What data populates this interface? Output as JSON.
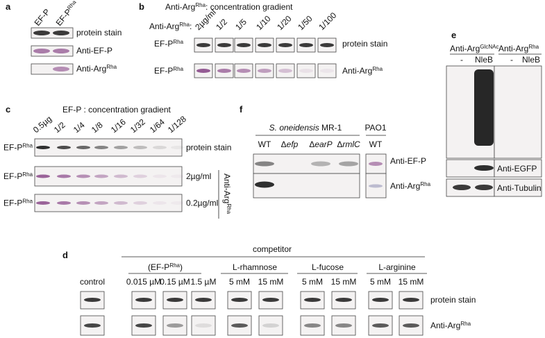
{
  "panel_a": {
    "letter": "a",
    "lanes": [
      "EF-P",
      {
        "base": "EF-P",
        "sup": "Rha"
      }
    ],
    "rows": [
      "protein stain",
      "Anti-EF-P",
      {
        "base": "Anti-Arg",
        "sup": "Rha"
      }
    ]
  },
  "panel_b": {
    "letter": "b",
    "title": {
      "base": "Anti-Arg",
      "sup": "Rha",
      "tail": ": concentration gradient"
    },
    "lane_prefix": {
      "base": "Anti-Arg",
      "sup": "Rha",
      "tail": ":"
    },
    "lanes": [
      "2µg/ml",
      "1/2",
      "1/5",
      "1/10",
      "1/20",
      "1/50",
      "1/100"
    ],
    "left_labels": [
      {
        "base": "EF-P",
        "sup": "Rha"
      },
      {
        "base": "EF-P",
        "sup": "Rha"
      }
    ],
    "rows": [
      "protein stain",
      {
        "base": "Anti-Arg",
        "sup": "Rha"
      }
    ]
  },
  "panel_c": {
    "letter": "c",
    "title": "EF-P : concentration gradient",
    "lanes": [
      "0.5µg",
      "1/2",
      "1/4",
      "1/8",
      "1/16",
      "1/32",
      "1/64",
      "1/128"
    ],
    "left_labels": [
      {
        "base": "EF-P",
        "sup": "Rha"
      },
      {
        "base": "EF-P",
        "sup": "Rha"
      },
      {
        "base": "EF-P",
        "sup": "Rha"
      }
    ],
    "rows": [
      "protein stain",
      "2µg/ml",
      "0.2µg/ml"
    ],
    "side_label": {
      "base": "Anti-Arg",
      "sup": "Rha"
    }
  },
  "panel_d": {
    "letter": "d",
    "title": "competitor",
    "groups": [
      {
        "base": "(EF-P",
        "sup": "Rha",
        "tail": ")"
      },
      "L-rhamnose",
      "L-fucose",
      "L-arginine"
    ],
    "lanes": [
      "control",
      "0.015 µM",
      "0.15 µM",
      "1.5 µM",
      "5 mM",
      "15 mM",
      "5 mM",
      "15 mM",
      "5 mM",
      "15 mM"
    ],
    "rows": [
      "protein stain",
      {
        "base": "Anti-Arg",
        "sup": "Rha"
      }
    ]
  },
  "panel_e": {
    "letter": "e",
    "headers": [
      {
        "base": "Anti-Arg",
        "sup": "GlcNAc"
      },
      {
        "base": "Anti-Arg",
        "sup": "Rha"
      }
    ],
    "lanes": [
      "-",
      "NleB",
      "-",
      "NleB"
    ],
    "rows": [
      "Anti-EGFP",
      "Anti-Tubulin"
    ]
  },
  "panel_f": {
    "letter": "f",
    "groups": [
      {
        "italic": "S. oneidensis",
        "tail": " MR-1"
      },
      "PAO1"
    ],
    "lanes": [
      "WT",
      {
        "base": "Δ",
        "italic": "efp"
      },
      {
        "base": "Δ",
        "italic": "earP"
      },
      {
        "base": "Δ",
        "italic": "rmlC"
      },
      "WT"
    ],
    "rows": [
      "Anti-EF-P",
      {
        "base": "Anti-Arg",
        "sup": "Rha"
      }
    ]
  }
}
